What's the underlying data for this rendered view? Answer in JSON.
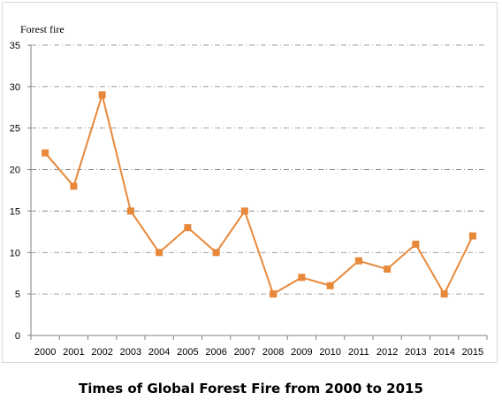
{
  "chart_data": {
    "type": "line",
    "title": "Times of Global Forest Fire from 2000 to 2015",
    "ylabel": "Forest fire",
    "xlabel": "",
    "categories": [
      "2000",
      "2001",
      "2002",
      "2003",
      "2004",
      "2005",
      "2006",
      "2007",
      "2008",
      "2009",
      "2010",
      "2011",
      "2012",
      "2013",
      "2014",
      "2015"
    ],
    "series": [
      {
        "name": "",
        "values": [
          22,
          18,
          29,
          15,
          10,
          13,
          10,
          15,
          5,
          7,
          6,
          9,
          8,
          11,
          5,
          12
        ]
      }
    ],
    "ylim": [
      0,
      35
    ],
    "yticks": [
      "0",
      "5",
      "10",
      "15",
      "20",
      "25",
      "30",
      "35"
    ],
    "grid": "horizontal dash-dot",
    "legend": "none",
    "colors": {
      "series": "#E8883A",
      "grid": "#808080",
      "axis": "#808080"
    }
  }
}
